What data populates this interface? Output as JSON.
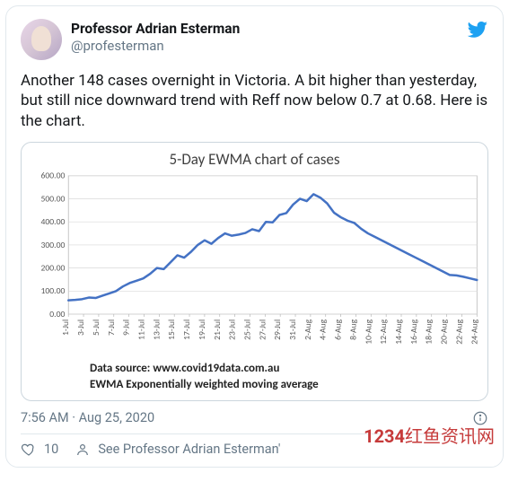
{
  "tweet": {
    "author": {
      "display_name": "Professor Adrian Esterman",
      "handle": "@profesterman"
    },
    "text": "Another 148 cases overnight in Victoria. A bit higher than yesterday, but still nice downward trend with Reff now below 0.7 at 0.68. Here is the chart.",
    "timestamp": "7:56 AM · Aug 25, 2020",
    "like_count": "10",
    "cta_text": "See Professor Adrian Esterman'"
  },
  "chart": {
    "type": "line",
    "title": "5-Day EWMA chart of cases",
    "background_color": "#ffffff",
    "plot_border_color": "#b5b5b5",
    "grid_color": "#d9d9d9",
    "line_color": "#4472c4",
    "line_width": 2.6,
    "title_fontsize": 17,
    "axis_label_fontsize": 10,
    "axis_label_color": "#595959",
    "ylim": [
      0,
      600
    ],
    "ytick_step": 100,
    "y_ticks": [
      "0.00",
      "100.00",
      "200.00",
      "300.00",
      "400.00",
      "500.00",
      "600.00"
    ],
    "x_labels": [
      "1-Jul",
      "3-Jul",
      "5-Jul",
      "7-Jul",
      "9-Jul",
      "11-Jul",
      "13-Jul",
      "15-Jul",
      "17-Jul",
      "19-Jul",
      "21-Jul",
      "23-Jul",
      "25-Jul",
      "27-Jul",
      "29-Jul",
      "31-Jul",
      "2-Aug",
      "4-Aug",
      "6-Aug",
      "8-Aug",
      "10-Aug",
      "12-Aug",
      "14-Aug",
      "16-Aug",
      "18-Aug",
      "20-Aug",
      "22-Aug",
      "24-Aug"
    ],
    "values": [
      60,
      62,
      65,
      72,
      70,
      80,
      90,
      100,
      120,
      135,
      145,
      155,
      175,
      200,
      195,
      225,
      255,
      245,
      270,
      300,
      320,
      305,
      330,
      350,
      340,
      345,
      352,
      368,
      360,
      400,
      398,
      430,
      438,
      475,
      500,
      490,
      520,
      505,
      480,
      440,
      420,
      405,
      395,
      370,
      350,
      335,
      320,
      305,
      290,
      275,
      260,
      245,
      230,
      215,
      200,
      185,
      170,
      168,
      162,
      155,
      148
    ],
    "footer_line1": "Data source: www.covid19data.com.au",
    "footer_line2": "EWMA Exponentially weighted moving average"
  },
  "watermark": {
    "text_nums": "1234",
    "text_rest": "红鱼资讯网",
    "color": "#c63a3a"
  }
}
